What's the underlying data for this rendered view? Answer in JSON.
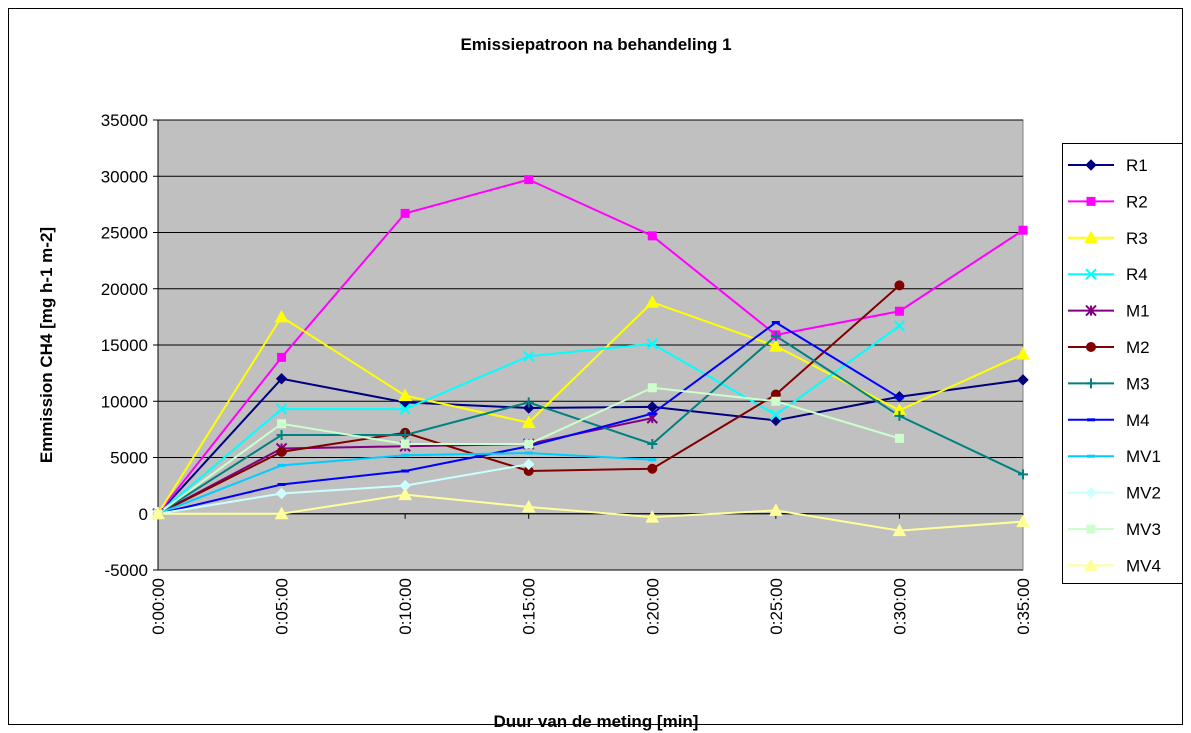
{
  "chart_data": {
    "type": "line",
    "title": "Emissiepatroon na behandeling 1",
    "x_label": "Duur van de meting [min]",
    "y_label": "Emmission CH4 [mg h-1 m-2]",
    "categories": [
      "0:00:00",
      "0:05:00",
      "0:10:00",
      "0:15:00",
      "0:20:00",
      "0:25:00",
      "0:30:00",
      "0:35:00"
    ],
    "ylim": [
      -5000,
      35000
    ],
    "yticks": [
      -5000,
      0,
      5000,
      10000,
      15000,
      20000,
      25000,
      30000,
      35000
    ],
    "grid": true,
    "legend": "right",
    "series": [
      {
        "name": "R1",
        "color": "#000080",
        "marker": "diamond",
        "values": [
          0,
          12000,
          9900,
          9400,
          9500,
          8300,
          10400,
          11900
        ]
      },
      {
        "name": "R2",
        "color": "#ff00ff",
        "marker": "square",
        "values": [
          0,
          13900,
          26700,
          29700,
          24700,
          15900,
          18000,
          25200
        ]
      },
      {
        "name": "R3",
        "color": "#ffff00",
        "marker": "triangle",
        "values": [
          0,
          17500,
          10500,
          8100,
          18800,
          14900,
          9200,
          14200
        ]
      },
      {
        "name": "R4",
        "color": "#00ffff",
        "marker": "x",
        "values": [
          0,
          9300,
          9300,
          14000,
          15100,
          8800,
          16700,
          null
        ]
      },
      {
        "name": "M1",
        "color": "#800080",
        "marker": "star",
        "values": [
          0,
          5800,
          6000,
          6200,
          8500,
          null,
          null,
          null
        ]
      },
      {
        "name": "M2",
        "color": "#800000",
        "marker": "circle",
        "values": [
          0,
          5500,
          7200,
          3800,
          4000,
          10600,
          20300,
          null
        ]
      },
      {
        "name": "M3",
        "color": "#008080",
        "marker": "plus",
        "values": [
          0,
          7000,
          7000,
          9900,
          6200,
          15800,
          8700,
          3500
        ]
      },
      {
        "name": "M4",
        "color": "#0000ff",
        "marker": "dash",
        "values": [
          0,
          2600,
          3800,
          6000,
          8900,
          17000,
          10300,
          null
        ]
      },
      {
        "name": "MV1",
        "color": "#00ccff",
        "marker": "dash",
        "values": [
          0,
          4300,
          5200,
          5400,
          4800,
          null,
          null,
          null
        ]
      },
      {
        "name": "MV2",
        "color": "#ccffff",
        "marker": "diamond",
        "values": [
          0,
          1800,
          2500,
          4400,
          null,
          null,
          null,
          null
        ]
      },
      {
        "name": "MV3",
        "color": "#ccffcc",
        "marker": "square",
        "values": [
          0,
          8000,
          6200,
          6200,
          11200,
          10000,
          6700,
          null
        ]
      },
      {
        "name": "MV4",
        "color": "#ffff99",
        "marker": "triangle",
        "values": [
          0,
          0,
          1700,
          600,
          -300,
          300,
          -1500,
          -700
        ]
      }
    ]
  }
}
